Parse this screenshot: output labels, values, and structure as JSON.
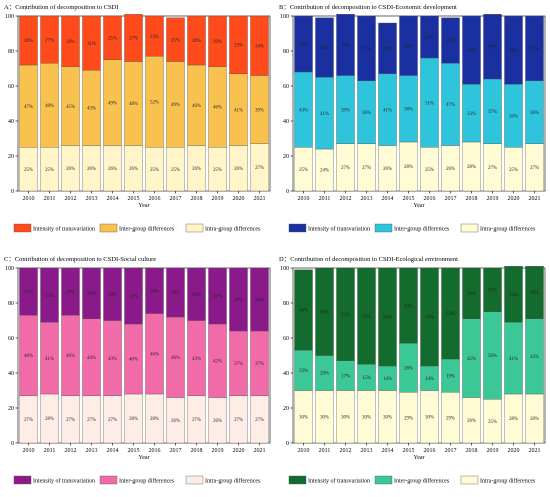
{
  "chart_data": [
    {
      "type": "bar",
      "stacked": true,
      "title": "A：Contribution of decomposition to CSDI",
      "xlabel": "Year",
      "ylabel": "",
      "ylim": [
        0,
        100
      ],
      "yticks": [
        0,
        20,
        40,
        60,
        80,
        100
      ],
      "grid": false,
      "legend": "bottom",
      "categories": [
        "2010",
        "2011",
        "2012",
        "2013",
        "2014",
        "2015",
        "2016",
        "2017",
        "2018",
        "2019",
        "2020",
        "2021"
      ],
      "series": [
        {
          "name": "Intra-group differences",
          "color": "#FFF5C8",
          "values": [
            25,
            25,
            26,
            26,
            26,
            26,
            25,
            25,
            26,
            25,
            26,
            27
          ],
          "labels": [
            "25%",
            "25%",
            "26%",
            "26%",
            "26%",
            "26%",
            "25%",
            "25%",
            "26%",
            "25%",
            "26%",
            "27%"
          ]
        },
        {
          "name": "Inter-group differences",
          "color": "#F9C24F",
          "values": [
            47,
            48,
            45,
            43,
            49,
            48,
            52,
            49,
            46,
            46,
            41,
            39
          ],
          "labels": [
            "47%",
            "48%",
            "45%",
            "43%",
            "49%",
            "48%",
            "52%",
            "49%",
            "46%",
            "46%",
            "41%",
            "39%"
          ]
        },
        {
          "name": "Intensity of transvariation",
          "color": "#FF4A1C",
          "values": [
            28,
            27,
            29,
            31,
            25,
            27,
            23,
            25,
            28,
            29,
            33,
            34
          ],
          "labels": [
            "28%",
            "27%",
            "29%",
            "31%",
            "25%",
            "27%",
            "23%",
            "25%",
            "28%",
            "29%",
            "33%",
            "34%"
          ]
        }
      ]
    },
    {
      "type": "bar",
      "stacked": true,
      "title": "B：Contribution of decomposition to CSDI-Economic development",
      "xlabel": "Year",
      "ylabel": "",
      "ylim": [
        0,
        100
      ],
      "yticks": [
        0,
        20,
        40,
        60,
        80,
        100
      ],
      "grid": false,
      "legend": "bottom",
      "categories": [
        "2010",
        "2011",
        "2012",
        "2013",
        "2014",
        "2015",
        "2016",
        "2017",
        "2018",
        "2019",
        "2020",
        "2021"
      ],
      "series": [
        {
          "name": "Intra-group differences",
          "color": "#FFFBD4",
          "values": [
            25,
            24,
            27,
            27,
            26,
            28,
            25,
            26,
            28,
            27,
            25,
            27
          ],
          "labels": [
            "25%",
            "24%",
            "27%",
            "27%",
            "26%",
            "28%",
            "25%",
            "26%",
            "28%",
            "27%",
            "25%",
            "27%"
          ]
        },
        {
          "name": "Inter-group differences",
          "color": "#2EC4DC",
          "values": [
            43,
            41,
            39,
            36,
            41,
            38,
            51,
            47,
            33,
            37,
            36,
            36
          ],
          "labels": [
            "43%",
            "41%",
            "39%",
            "36%",
            "41%",
            "38%",
            "51%",
            "47%",
            "33%",
            "37%",
            "36%",
            "36%"
          ]
        },
        {
          "name": "Intensity of transvariation",
          "color": "#1A2FA0",
          "values": [
            32,
            34,
            35,
            37,
            29,
            34,
            24,
            26,
            39,
            37,
            39,
            37
          ],
          "labels": [
            "32%",
            "34%",
            "35%",
            "37%",
            "29%",
            "34%",
            "24%",
            "26%",
            "39%",
            "37%",
            "39%",
            "37%"
          ]
        }
      ]
    },
    {
      "type": "bar",
      "stacked": true,
      "title": "C：Contribution of decomposition to CSDI-Social culture",
      "xlabel": "Year",
      "ylabel": "",
      "ylim": [
        0,
        100
      ],
      "yticks": [
        0,
        20,
        40,
        60,
        80,
        100
      ],
      "grid": false,
      "legend": "bottom",
      "categories": [
        "2010",
        "2011",
        "2012",
        "2013",
        "2014",
        "2015",
        "2016",
        "2017",
        "2018",
        "2019",
        "2020",
        "2021"
      ],
      "series": [
        {
          "name": "Intra-group differences",
          "color": "#FDEDE6",
          "values": [
            27,
            28,
            27,
            27,
            27,
            28,
            28,
            26,
            27,
            26,
            27,
            27
          ],
          "labels": [
            "27%",
            "28%",
            "27%",
            "27%",
            "27%",
            "28%",
            "28%",
            "26%",
            "27%",
            "26%",
            "27%",
            "27%"
          ]
        },
        {
          "name": "Inter-group differences",
          "color": "#F06BA8",
          "values": [
            46,
            41,
            46,
            44,
            43,
            40,
            46,
            46,
            43,
            42,
            37,
            37
          ],
          "labels": [
            "46%",
            "41%",
            "46%",
            "44%",
            "43%",
            "40%",
            "46%",
            "46%",
            "43%",
            "42%",
            "37%",
            "37%"
          ]
        },
        {
          "name": "Intensity of transvariation",
          "color": "#8A1A8A",
          "values": [
            27,
            31,
            27,
            29,
            30,
            32,
            26,
            28,
            30,
            32,
            36,
            36
          ],
          "labels": [
            "27%",
            "31%",
            "27%",
            "29%",
            "30%",
            "32%",
            "26%",
            "28%",
            "30%",
            "32%",
            "36%",
            "36%"
          ]
        }
      ]
    },
    {
      "type": "bar",
      "stacked": true,
      "title": "D：Contribution of decomposition to CSDI-Ecological environment",
      "xlabel": "Year",
      "ylabel": "",
      "ylim": [
        0,
        100
      ],
      "yticks": [
        0,
        20,
        40,
        60,
        80,
        100
      ],
      "grid": false,
      "legend": "bottom",
      "categories": [
        "2010",
        "2011",
        "2012",
        "2013",
        "2014",
        "2015",
        "2016",
        "2017",
        "2018",
        "2019",
        "2020",
        "2021"
      ],
      "series": [
        {
          "name": "Intra-group differences",
          "color": "#FFFBD4",
          "values": [
            30,
            30,
            30,
            30,
            30,
            29,
            30,
            29,
            26,
            25,
            28,
            28
          ],
          "labels": [
            "30%",
            "30%",
            "30%",
            "30%",
            "30%",
            "29%",
            "30%",
            "29%",
            "26%",
            "25%",
            "28%",
            "28%"
          ]
        },
        {
          "name": "Inter-group differences",
          "color": "#3CC796",
          "values": [
            23,
            20,
            17,
            15,
            14,
            28,
            14,
            19,
            45,
            50,
            41,
            43
          ],
          "labels": [
            "23%",
            "20%",
            "17%",
            "15%",
            "14%",
            "28%",
            "14%",
            "19%",
            "45%",
            "50%",
            "41%",
            "43%"
          ]
        },
        {
          "name": "Intensity of transvariation",
          "color": "#136B2E",
          "values": [
            46,
            50,
            53,
            55,
            56,
            43,
            56,
            52,
            29,
            25,
            32,
            30
          ],
          "labels": [
            "46%",
            "50%",
            "53%",
            "55%",
            "56%",
            "43%",
            "56%",
            "52%",
            "29%",
            "25%",
            "32%",
            "30%"
          ]
        }
      ]
    }
  ]
}
